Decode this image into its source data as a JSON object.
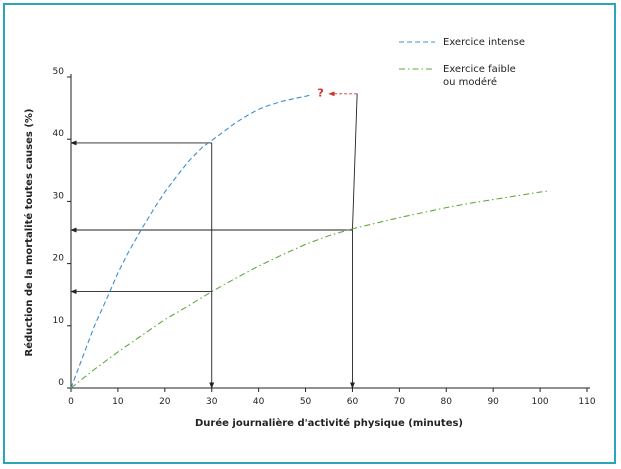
{
  "chart_data": {
    "type": "line",
    "title": "",
    "xlabel": "Durée journalière d'activité physique (minutes)",
    "ylabel": "Réduction de la mortalité toutes causes (%)",
    "xlim": [
      0,
      110
    ],
    "ylim": [
      0,
      50
    ],
    "xticks": [
      0,
      10,
      20,
      30,
      40,
      50,
      60,
      70,
      80,
      90,
      100,
      110
    ],
    "yticks": [
      0,
      10,
      20,
      30,
      40,
      50
    ],
    "grid": false,
    "legend_position": "top-right",
    "series": [
      {
        "name": "Exercice intense",
        "color": "#3a8fd0",
        "style": "dashed",
        "x": [
          0,
          2,
          5,
          8,
          10,
          12,
          15,
          18,
          20,
          22,
          25,
          28,
          30,
          32,
          35,
          38,
          40,
          42,
          45,
          48,
          50,
          51
        ],
        "y": [
          0,
          4,
          10,
          15,
          18.5,
          21.5,
          25.5,
          29.2,
          31.5,
          33.5,
          36.4,
          38.7,
          39.8,
          40.9,
          42.6,
          44,
          44.8,
          45.4,
          46.1,
          46.6,
          46.9,
          47.1
        ]
      },
      {
        "name": "Exercice faible\nou modéré",
        "color": "#5cab3d",
        "style": "dashdot",
        "x": [
          0,
          5,
          10,
          15,
          20,
          25,
          30,
          35,
          40,
          45,
          50,
          55,
          60,
          65,
          70,
          75,
          80,
          85,
          90,
          95,
          100,
          102
        ],
        "y": [
          0,
          3,
          5.8,
          8.4,
          11,
          13.2,
          15.5,
          17.6,
          19.6,
          21.4,
          23.1,
          24.5,
          25.6,
          26.5,
          27.4,
          28.2,
          29,
          29.7,
          30.3,
          30.9,
          31.5,
          31.7
        ]
      }
    ],
    "annotations": [
      {
        "type": "arrow-path",
        "points": [
          [
            30,
            39.4
          ],
          [
            0,
            39.4
          ]
        ]
      },
      {
        "type": "arrow-path",
        "points": [
          [
            30,
            39.4
          ],
          [
            30,
            0
          ]
        ]
      },
      {
        "type": "arrow-path",
        "points": [
          [
            30,
            15.5
          ],
          [
            0,
            15.5
          ]
        ]
      },
      {
        "type": "arrow-path",
        "points": [
          [
            60,
            25.4
          ],
          [
            0,
            25.4
          ]
        ]
      },
      {
        "type": "arrow-path",
        "points": [
          [
            60,
            25.4
          ],
          [
            60,
            0
          ]
        ]
      },
      {
        "type": "arrow-path",
        "color": "#d0342c",
        "points": [
          [
            61,
            47.3
          ],
          [
            55,
            47.3
          ]
        ]
      },
      {
        "type": "label",
        "text": "?",
        "color": "#d0342c",
        "x": 53.2,
        "y": 47.5
      }
    ]
  }
}
